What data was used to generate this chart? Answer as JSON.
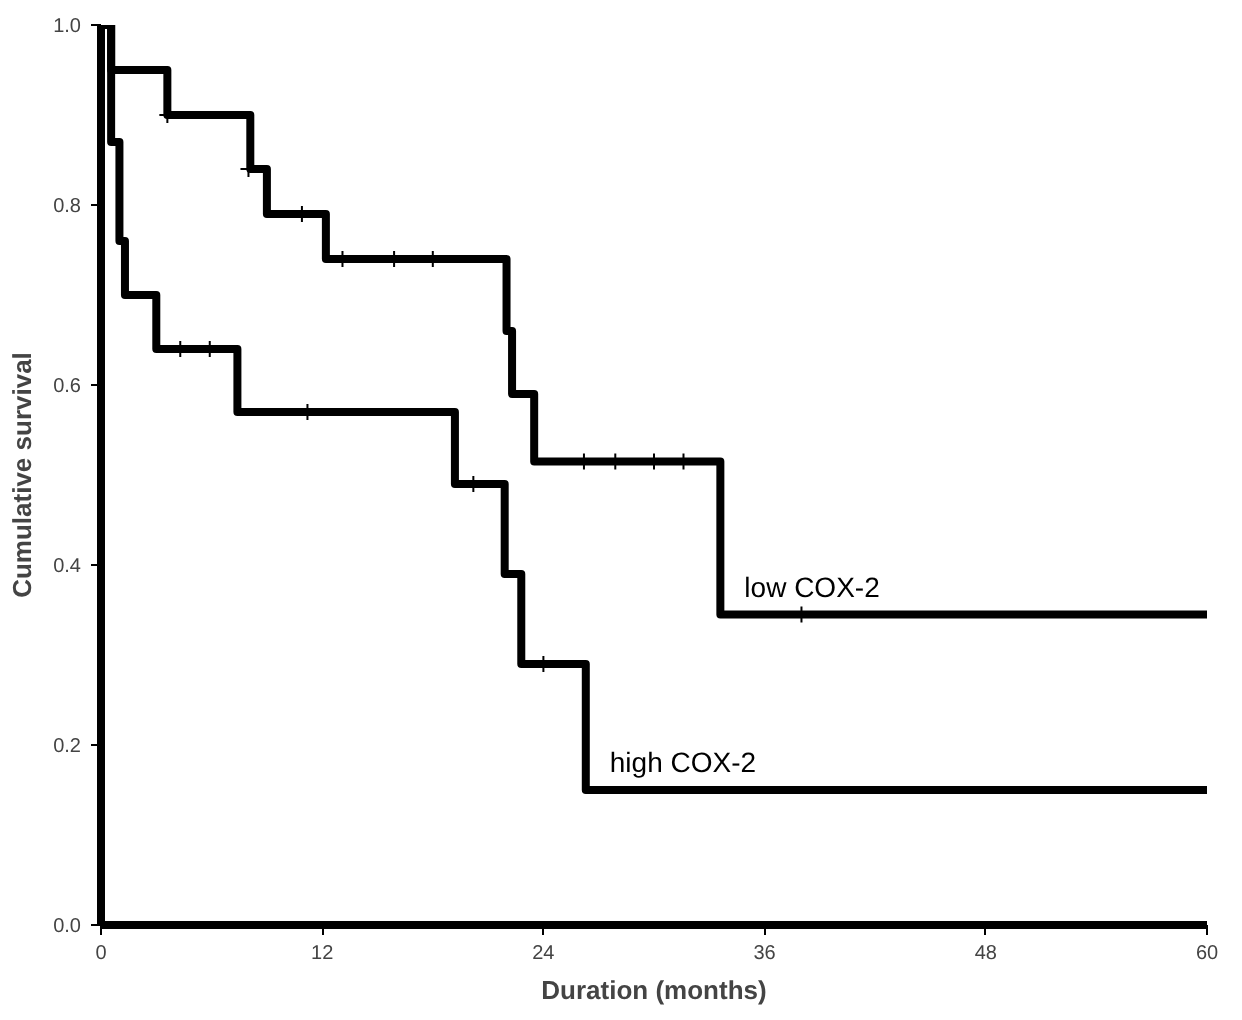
{
  "chart_data": {
    "type": "step",
    "xlabel": "Duration (months)",
    "ylabel": "Cumulative survival",
    "xlim": [
      0,
      60
    ],
    "xticks": [
      0,
      12,
      24,
      36,
      48,
      60
    ],
    "ylim": [
      0,
      1
    ],
    "yticks": [
      {
        "value": 0,
        "label": "0.0"
      },
      0.2,
      0.4,
      0.6,
      0.8,
      {
        "value": 1,
        "label": "1.0"
      }
    ],
    "grid": false,
    "series": [
      {
        "name": "low COX-2",
        "color": "#000000",
        "x": [
          0,
          0.55,
          3.6,
          8.1,
          9.0,
          12.2,
          22.0,
          22.3,
          23.5,
          33.6,
          60
        ],
        "values": [
          1.0,
          0.95,
          0.9,
          0.84,
          0.79,
          0.74,
          0.66,
          0.59,
          0.515,
          0.345,
          0.345
        ]
      },
      {
        "name": "high COX-2",
        "color": "#000000",
        "x": [
          0,
          0.55,
          1.0,
          1.3,
          3.0,
          7.4,
          19.2,
          21.9,
          22.8,
          26.3,
          60
        ],
        "values": [
          1.0,
          0.87,
          0.76,
          0.7,
          0.64,
          0.57,
          0.49,
          0.39,
          0.29,
          0.15,
          0.15
        ]
      },
      {
        "type": "scatter",
        "marker": "cross",
        "color": "#000000",
        "x": [
          3.6,
          8.0,
          10.9,
          13.1,
          15.9,
          18.0,
          26.2,
          27.9,
          30.0,
          31.6,
          38.0
        ],
        "values": [
          0.9,
          0.84,
          0.79,
          0.74,
          0.74,
          0.74,
          0.515,
          0.515,
          0.515,
          0.515,
          0.345
        ]
      },
      {
        "type": "scatter",
        "marker": "cross",
        "color": "#000000",
        "x": [
          4.3,
          5.9,
          11.2,
          20.2,
          24.0
        ],
        "values": [
          0.64,
          0.64,
          0.57,
          0.49,
          0.29
        ]
      }
    ]
  }
}
